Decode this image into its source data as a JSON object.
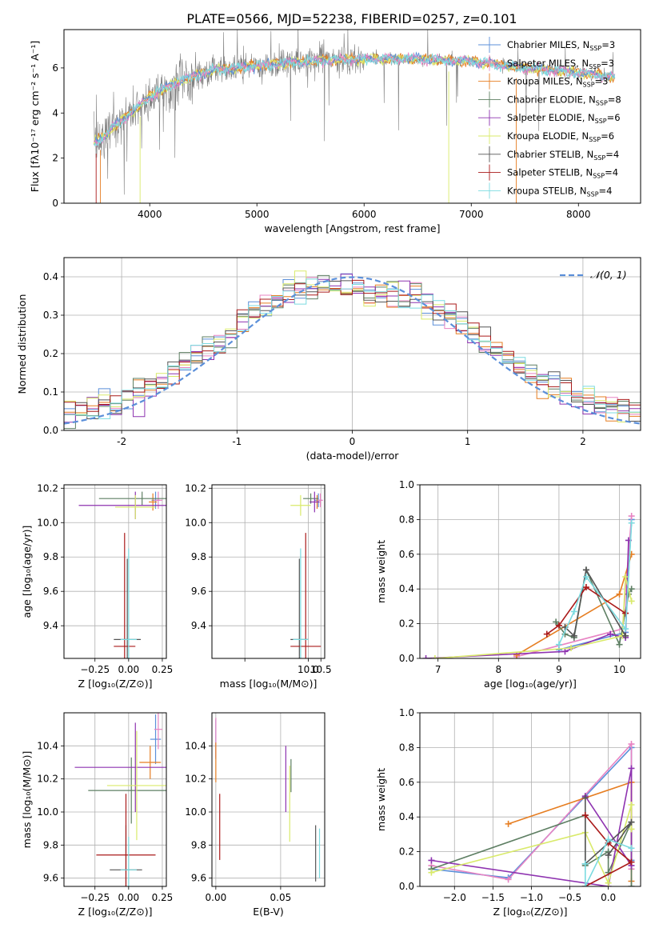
{
  "colors": {
    "series": [
      "#5b8fd9",
      "#e884c3",
      "#e67e22",
      "#5e7f63",
      "#8e33b0",
      "#d9ea6a",
      "#555555",
      "#aa1a1a",
      "#7bdbe0"
    ],
    "gauss": "#5b8fd9",
    "grid": "#b0b0b0"
  },
  "series": [
    {
      "name": "Chabrier MILES, N",
      "sub": "SSP",
      "suffix": "=3"
    },
    {
      "name": "Salpeter MILES, N",
      "sub": "SSP",
      "suffix": "=3"
    },
    {
      "name": "Kroupa MILES, N",
      "sub": "SSP",
      "suffix": "=3"
    },
    {
      "name": "Chabrier ELODIE, N",
      "sub": "SSP",
      "suffix": "=8"
    },
    {
      "name": "Salpeter ELODIE, N",
      "sub": "SSP",
      "suffix": "=6"
    },
    {
      "name": "Kroupa ELODIE, N",
      "sub": "SSP",
      "suffix": "=6"
    },
    {
      "name": "Chabrier STELIB, N",
      "sub": "SSP",
      "suffix": "=4"
    },
    {
      "name": "Salpeter STELIB, N",
      "sub": "SSP",
      "suffix": "=4"
    },
    {
      "name": "Kroupa STELIB, N",
      "sub": "SSP",
      "suffix": "=4"
    }
  ],
  "chart_data": [
    {
      "id": "spectrum",
      "type": "line",
      "title": "PLATE=0566, MJD=52238, FIBERID=0257, z=0.101",
      "xlabel": "wavelength [Angstrom, rest frame]",
      "ylabel": "Flux [fλ10⁻¹⁷ erg cm⁻² s⁻¹ A⁻¹]",
      "xlim": [
        3200,
        8580
      ],
      "ylim": [
        0,
        7.7
      ],
      "xticks": [
        4000,
        5000,
        6000,
        7000,
        8000
      ],
      "yticks": [
        0,
        2,
        4,
        6
      ],
      "legend": "right",
      "continuum_x": [
        3500,
        3700,
        4000,
        4300,
        4600,
        5000,
        5500,
        6000,
        6500,
        7000,
        7500,
        8000,
        8300
      ],
      "continuum_y": [
        2.7,
        3.5,
        4.7,
        5.5,
        5.9,
        6.1,
        6.3,
        6.4,
        6.4,
        6.3,
        6.0,
        5.8,
        5.6
      ]
    },
    {
      "id": "residuals",
      "type": "bar",
      "xlabel": "(data-model)/error",
      "ylabel": "Normed distribution",
      "xlim": [
        -2.5,
        2.5
      ],
      "ylim": [
        0,
        0.45
      ],
      "xticks": [
        -2,
        -1,
        0,
        1,
        2
      ],
      "yticks": [
        0.0,
        0.1,
        0.2,
        0.3,
        0.4
      ],
      "bin_width": 0.1,
      "legend_label": "𝒩(0, 1)",
      "legend": "top-right"
    },
    {
      "id": "age-vs-z",
      "type": "scatter",
      "xlabel": "Z [log₁₀(Z/Z⊙)]",
      "ylabel": "age  [log₁₀(age/yr)]",
      "xlim": [
        -0.48,
        0.28
      ],
      "ylim": [
        9.21,
        10.22
      ],
      "xticks": [
        -0.25,
        0.0,
        0.25
      ],
      "xticklabels": [
        "−0.25",
        "0.00",
        "0.25"
      ],
      "yticks": [
        9.4,
        9.6,
        9.8,
        10.0,
        10.2
      ],
      "yticklabels": [
        "9.4",
        "9.6",
        "9.8",
        "10.0",
        "10.2"
      ],
      "points": [
        {
          "s": 0,
          "x": 0.2,
          "y": 10.13,
          "ex": 0.03,
          "ey": 0.05
        },
        {
          "s": 1,
          "x": 0.22,
          "y": 10.13,
          "ex": 0.03,
          "ey": 0.05
        },
        {
          "s": 2,
          "x": 0.18,
          "y": 10.12,
          "ex": 0.03,
          "ey": 0.05
        },
        {
          "s": 3,
          "x": 0.1,
          "y": 10.14,
          "ex": 0.32,
          "ey": 0.04
        },
        {
          "s": 4,
          "x": 0.05,
          "y": 10.1,
          "ex": 0.42,
          "ey": 0.08
        },
        {
          "s": 5,
          "x": 0.05,
          "y": 10.09,
          "ex": 0.15,
          "ey": 0.07
        },
        {
          "s": 6,
          "x": -0.01,
          "y": 9.32,
          "ex": 0.1,
          "ey": 0.47
        },
        {
          "s": 7,
          "x": -0.03,
          "y": 9.28,
          "ex": 0.08,
          "ey": 0.66
        },
        {
          "s": 8,
          "x": 0.0,
          "y": 9.32,
          "ex": 0.06,
          "ey": 0.53
        }
      ]
    },
    {
      "id": "age-vs-mass",
      "type": "scatter",
      "xlabel": "mass [log₁₀(M/M⊙)]",
      "ylabel": "",
      "xlim": [
        6.2,
        10.65
      ],
      "ylim": [
        9.21,
        10.22
      ],
      "xticks": [
        7.5,
        10.0,
        10.5
      ],
      "xticklabels": [
        "",
        "10.0",
        "10.5"
      ],
      "yticks": [
        9.4,
        9.6,
        9.8,
        10.0,
        10.2
      ],
      "yticklabels": [
        "9.4",
        "9.6",
        "9.8",
        "10.0",
        "10.2"
      ],
      "points": [
        {
          "s": 0,
          "x": 10.4,
          "y": 10.13,
          "ex": 0.15,
          "ey": 0.04
        },
        {
          "s": 1,
          "x": 10.48,
          "y": 10.13,
          "ex": 0.1,
          "ey": 0.04
        },
        {
          "s": 2,
          "x": 10.35,
          "y": 10.12,
          "ex": 0.08,
          "ey": 0.04
        },
        {
          "s": 3,
          "x": 10.1,
          "y": 10.14,
          "ex": 0.3,
          "ey": 0.03
        },
        {
          "s": 4,
          "x": 10.25,
          "y": 10.12,
          "ex": 0.2,
          "ey": 0.06
        },
        {
          "s": 5,
          "x": 9.7,
          "y": 10.1,
          "ex": 0.4,
          "ey": 0.06
        },
        {
          "s": 6,
          "x": 9.65,
          "y": 9.32,
          "ex": 0.35,
          "ey": 0.47
        },
        {
          "s": 7,
          "x": 9.9,
          "y": 9.28,
          "ex": 0.6,
          "ey": 0.66
        },
        {
          "s": 8,
          "x": 9.7,
          "y": 9.32,
          "ex": 0.3,
          "ey": 0.53
        }
      ]
    },
    {
      "id": "weight-vs-age",
      "type": "line",
      "xlabel": "age  [log₁₀(age/yr)]",
      "ylabel": "mass weight",
      "xlim": [
        6.7,
        10.35
      ],
      "ylim": [
        0,
        1.0
      ],
      "xticks": [
        7,
        8,
        9,
        10
      ],
      "yticks": [
        0.0,
        0.2,
        0.4,
        0.6,
        0.8,
        1.0
      ],
      "series_points": [
        {
          "s": 0,
          "x": [
            9.0,
            10.1,
            10.2
          ],
          "y": [
            0.05,
            0.15,
            0.8
          ]
        },
        {
          "s": 1,
          "x": [
            8.3,
            10.05,
            10.2
          ],
          "y": [
            0.01,
            0.17,
            0.82
          ]
        },
        {
          "s": 2,
          "x": [
            8.3,
            10.0,
            10.2
          ],
          "y": [
            0.02,
            0.37,
            0.6
          ]
        },
        {
          "s": 3,
          "x": [
            8.95,
            9.1,
            9.25,
            9.45,
            10.0,
            10.15,
            10.2
          ],
          "y": [
            0.21,
            0.14,
            0.12,
            0.51,
            0.08,
            0.37,
            0.4
          ]
        },
        {
          "s": 4,
          "x": [
            6.8,
            9.1,
            9.85,
            10.1,
            10.15
          ],
          "y": [
            0.0,
            0.04,
            0.14,
            0.12,
            0.68
          ]
        },
        {
          "s": 5,
          "x": [
            6.95,
            9.2,
            10.05,
            10.1,
            10.2
          ],
          "y": [
            0.0,
            0.06,
            0.13,
            0.47,
            0.33
          ]
        },
        {
          "s": 6,
          "x": [
            9.1,
            9.25,
            9.45,
            10.1
          ],
          "y": [
            0.18,
            0.13,
            0.51,
            0.13
          ]
        },
        {
          "s": 7,
          "x": [
            8.8,
            9.0,
            9.45,
            10.1
          ],
          "y": [
            0.14,
            0.19,
            0.41,
            0.26
          ]
        },
        {
          "s": 8,
          "x": [
            9.0,
            9.25,
            9.45,
            10.1,
            10.2
          ],
          "y": [
            0.08,
            0.27,
            0.47,
            0.17,
            0.78
          ]
        }
      ]
    },
    {
      "id": "mass-vs-z",
      "type": "scatter",
      "xlabel": "Z [log₁₀(Z/Z⊙)]",
      "ylabel": "mass [log₁₀(M/M⊙)]",
      "xlim": [
        -0.48,
        0.28
      ],
      "ylim": [
        9.55,
        10.6
      ],
      "xticks": [
        -0.25,
        0.0,
        0.25
      ],
      "xticklabels": [
        "−0.25",
        "0.00",
        "0.25"
      ],
      "yticks": [
        9.6,
        9.8,
        10.0,
        10.2,
        10.4
      ],
      "yticklabels": [
        "9.6",
        "9.8",
        "10.0",
        "10.2",
        "10.4"
      ],
      "points": [
        {
          "s": 0,
          "x": 0.2,
          "y": 10.44,
          "ex": 0.04,
          "ey": 0.15
        },
        {
          "s": 1,
          "x": 0.22,
          "y": 10.5,
          "ex": 0.03,
          "ey": 0.12
        },
        {
          "s": 2,
          "x": 0.16,
          "y": 10.3,
          "ex": 0.08,
          "ey": 0.1
        },
        {
          "s": 3,
          "x": 0.02,
          "y": 10.13,
          "ex": 0.32,
          "ey": 0.2
        },
        {
          "s": 4,
          "x": 0.05,
          "y": 10.27,
          "ex": 0.45,
          "ey": 0.27
        },
        {
          "s": 5,
          "x": 0.06,
          "y": 10.16,
          "ex": 0.22,
          "ey": 0.33
        },
        {
          "s": 6,
          "x": -0.02,
          "y": 9.65,
          "ex": 0.12,
          "ey": 0.27
        },
        {
          "s": 7,
          "x": -0.02,
          "y": 9.74,
          "ex": 0.22,
          "ey": 0.37
        },
        {
          "s": 8,
          "x": 0.0,
          "y": 9.65,
          "ex": 0.06,
          "ey": 0.2
        }
      ]
    },
    {
      "id": "mass-vs-ebv",
      "type": "scatter",
      "xlabel": "E(B-V)",
      "ylabel": "",
      "xlim": [
        -0.003,
        0.084
      ],
      "ylim": [
        9.55,
        10.6
      ],
      "xticks": [
        0.0,
        0.05
      ],
      "xticklabels": [
        "0.00",
        "0.05"
      ],
      "yticks": [
        9.6,
        9.8,
        10.0,
        10.2,
        10.4
      ],
      "yticklabels": [
        "9.6",
        "9.8",
        "10.0",
        "10.2",
        "10.4"
      ],
      "points": [
        {
          "s": 0,
          "x": 0.0,
          "y": 10.44,
          "ex": 0,
          "ey": 0.12
        },
        {
          "s": 1,
          "x": 0.0,
          "y": 10.45,
          "ex": 0,
          "ey": 0.12
        },
        {
          "s": 2,
          "x": 0.0,
          "y": 10.3,
          "ex": 0,
          "ey": 0.12
        },
        {
          "s": 3,
          "x": 0.058,
          "y": 10.22,
          "ex": 0,
          "ey": 0.1
        },
        {
          "s": 4,
          "x": 0.054,
          "y": 10.2,
          "ex": 0,
          "ey": 0.2
        },
        {
          "s": 5,
          "x": 0.057,
          "y": 10.05,
          "ex": 0,
          "ey": 0.23
        },
        {
          "s": 6,
          "x": 0.077,
          "y": 9.75,
          "ex": 0,
          "ey": 0.17
        },
        {
          "s": 7,
          "x": 0.003,
          "y": 9.91,
          "ex": 0,
          "ey": 0.2
        },
        {
          "s": 8,
          "x": 0.08,
          "y": 9.75,
          "ex": 0,
          "ey": 0.15
        }
      ]
    },
    {
      "id": "weight-vs-z",
      "type": "line",
      "xlabel": "Z [log₁₀(Z/Z⊙)]",
      "ylabel": "mass weight",
      "xlim": [
        -2.45,
        0.42
      ],
      "ylim": [
        0,
        1.0
      ],
      "xticks": [
        -2.0,
        -1.5,
        -1.0,
        -0.5,
        0.0
      ],
      "xticklabels": [
        "−2.0",
        "−1.5",
        "−1.0",
        "−0.5",
        "0.0"
      ],
      "yticks": [
        0.0,
        0.2,
        0.4,
        0.6,
        0.8,
        1.0
      ],
      "series_points": [
        {
          "s": 0,
          "x": [
            -2.3,
            -1.3,
            0.3,
            0.3
          ],
          "y": [
            0.1,
            0.05,
            0.8,
            0.15
          ]
        },
        {
          "s": 1,
          "x": [
            -2.3,
            -1.3,
            0.3,
            0.3
          ],
          "y": [
            0.12,
            0.04,
            0.82,
            0.1
          ]
        },
        {
          "s": 2,
          "x": [
            -1.3,
            0.3,
            0.3
          ],
          "y": [
            0.36,
            0.6,
            0.03
          ]
        },
        {
          "s": 3,
          "x": [
            -2.3,
            -0.3,
            -0.3,
            0.0,
            0.0,
            0.3,
            0.3
          ],
          "y": [
            0.1,
            0.41,
            0.12,
            0.2,
            0.08,
            0.37,
            0.0
          ]
        },
        {
          "s": 4,
          "x": [
            -2.3,
            0.0,
            0.3,
            0.3,
            -0.3
          ],
          "y": [
            0.15,
            0.0,
            0.68,
            0.12,
            0.52
          ]
        },
        {
          "s": 5,
          "x": [
            -2.3,
            -0.3,
            0.0,
            0.3,
            0.3
          ],
          "y": [
            0.08,
            0.31,
            0.02,
            0.47,
            0.33
          ]
        },
        {
          "s": 6,
          "x": [
            -0.3,
            -0.3,
            0.3,
            0.0
          ],
          "y": [
            0.51,
            0.13,
            0.37,
            0.18
          ]
        },
        {
          "s": 7,
          "x": [
            -0.3,
            0.0,
            0.3,
            -0.3
          ],
          "y": [
            0.41,
            0.25,
            0.14,
            0.0
          ]
        },
        {
          "s": 8,
          "x": [
            -0.3,
            -0.3,
            0.0,
            0.3
          ],
          "y": [
            0.13,
            0.0,
            0.27,
            0.22
          ]
        }
      ]
    }
  ]
}
